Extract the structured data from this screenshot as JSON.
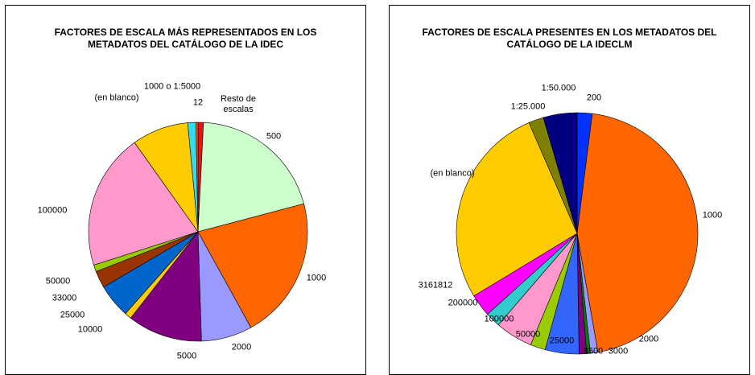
{
  "chart_data": [
    {
      "type": "pie",
      "title": "FACTORES DE ESCALA MÁS REPRESENTADOS EN LOS METADATOS DEL CATÁLOGO DE LA IDEC",
      "categories": [
        "Resto de escalas",
        "500",
        "1000",
        "2000",
        "5000",
        "10000",
        "25000",
        "33000",
        "50000",
        "100000",
        "(en blanco)",
        "1000 o 1:5000",
        "12"
      ],
      "values": [
        0.8,
        20,
        21,
        7.5,
        11,
        1,
        5,
        2.5,
        1,
        20,
        8.3,
        1.2,
        0.3
      ],
      "colors": [
        "#ee1111",
        "#ccffcc",
        "#ff6600",
        "#9999ff",
        "#800080",
        "#ffcc00",
        "#0066cc",
        "#993300",
        "#99cc00",
        "#ff99cc",
        "#ffcc00",
        "#33ddee",
        "#ff6600"
      ]
    },
    {
      "type": "pie",
      "title": "FACTORES DE ESCALA PRESENTES EN LOS METADATOS DEL CATÁLOGO DE LA IDECLM",
      "categories": [
        "200",
        "1000",
        "2000",
        "3000",
        "8500",
        "25000",
        "50000",
        "100000",
        "200000",
        "3161812",
        "(en blanco)",
        "1:25.000",
        "1:50.000"
      ],
      "values": [
        2,
        45,
        1,
        0.5,
        1,
        4.5,
        2,
        5,
        2,
        3,
        27,
        2,
        4.5
      ],
      "colors": [
        "#0033ff",
        "#ff6600",
        "#9999ff",
        "#008000",
        "#800080",
        "#3366ff",
        "#99cc00",
        "#ff99cc",
        "#33cccc",
        "#ff00ff",
        "#ffcc00",
        "#808000",
        "#000080"
      ]
    }
  ]
}
